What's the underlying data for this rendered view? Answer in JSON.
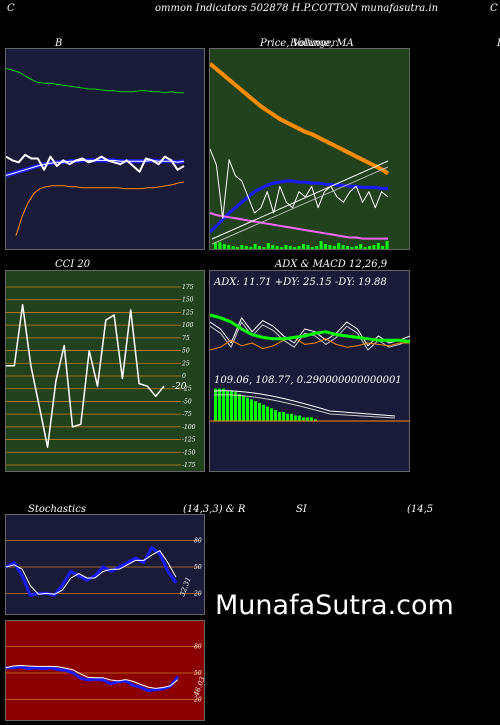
{
  "header": {
    "c_left": "C",
    "title": "ommon  Indicators 502878 H.P.COTTON  munafasutra.in",
    "c_right": "C"
  },
  "panels": {
    "b": {
      "label": "B"
    },
    "price": {
      "label": "Price,  Volume,  MA",
      "label_overlap": "Bollinger"
    },
    "cci": {
      "label": "CCI 20",
      "value_label": "-20",
      "ticks": [
        "175",
        "150",
        "125",
        "100",
        "75",
        "50",
        "25",
        "0",
        "-25",
        "-50",
        "-75",
        "-100",
        "-125",
        "-150",
        "-175"
      ]
    },
    "adx": {
      "label": "ADX  & MACD 12,26,9",
      "adx_text": "ADX: 11.71  +DY: 25.15 -DY: 19.88",
      "macd_text": "109.06,  108.77,  0.290000000000001"
    },
    "stoch": {
      "label_left": "Stochastics",
      "label_mid": "(14,3,3) & R",
      "label_si": "SI",
      "label_right": "(14,5",
      "ticks": [
        "80",
        "50",
        "20"
      ],
      "value_label": "32.31"
    },
    "rsi": {
      "ticks": [
        "80",
        "50",
        "20"
      ],
      "value_label": "46.03"
    },
    "right_edge": {
      "label": "I"
    }
  },
  "watermark": "MunafaSutra.com",
  "colors": {
    "bg": "#000000",
    "navy": "#1a1b38",
    "green_panel": "#21421d",
    "red_panel": "#8b0000",
    "white": "#ffffff",
    "blue": "#1a1aff",
    "orange": "#ff8c00",
    "green": "#00d000",
    "magenta": "#ff66ff",
    "grid_orange": "#c87d1e",
    "lime": "#00ff00"
  },
  "chart_data": [
    {
      "type": "line",
      "title": "B",
      "series": [
        {
          "values": [
            128,
            126,
            124,
            120,
            116,
            113,
            112,
            112,
            111,
            110,
            109,
            108,
            107,
            106,
            106,
            105,
            104,
            104,
            103,
            103,
            103,
            104,
            104,
            103,
            103,
            102,
            103,
            102,
            102
          ]
        },
        {
          "values": [
            34,
            30,
            28,
            36,
            32,
            32,
            20,
            34,
            24,
            30,
            26,
            30,
            32,
            28,
            30,
            34,
            30,
            28,
            26,
            30,
            24,
            18,
            32,
            30,
            26,
            34,
            30,
            20,
            24
          ]
        },
        {
          "values": [
            14,
            16,
            18,
            20,
            22,
            24,
            26,
            27,
            28,
            28,
            29,
            29,
            30,
            30,
            30,
            30,
            30,
            30,
            29,
            29,
            29,
            29,
            29,
            30,
            29,
            29,
            29,
            28,
            29
          ]
        },
        {
          "values": [
            -50,
            -30,
            -15,
            -5,
            0,
            2,
            3,
            3,
            3,
            2,
            2,
            1,
            1,
            1,
            1,
            1,
            1,
            1,
            0,
            0,
            0,
            0,
            1,
            1,
            2,
            3,
            4,
            6,
            7
          ]
        }
      ]
    },
    {
      "type": "line",
      "title": "Price, Volume, MA",
      "series": [
        {
          "values": [
            100,
            95,
            90,
            85,
            80,
            75,
            70,
            65,
            60,
            56,
            52,
            48,
            45,
            42,
            39,
            36,
            34,
            31,
            28,
            25,
            22,
            19,
            16,
            13,
            10,
            7,
            4,
            1,
            -3
          ]
        },
        {
          "values": [
            20,
            5,
            -45,
            10,
            -5,
            -10,
            -25,
            -40,
            -35,
            -20,
            -40,
            -15,
            -30,
            -35,
            -20,
            -25,
            -15,
            -35,
            -20,
            -15,
            -25,
            -30,
            -20,
            -15,
            -30,
            -20,
            -35,
            -20,
            -25
          ]
        },
        {
          "values": [
            -58,
            -52,
            -46,
            -40,
            -35,
            -30,
            -25,
            -20,
            -17,
            -14,
            -12,
            -11,
            -10,
            -10,
            -11,
            -11,
            -12,
            -12,
            -13,
            -13,
            -14,
            -14,
            -15,
            -15,
            -16,
            -16,
            -16,
            -17,
            -17
          ]
        },
        {
          "values": [
            -40,
            -42,
            -43,
            -44,
            -45,
            -46,
            -47,
            -48,
            -49,
            -50,
            -51,
            -52,
            -53,
            -54,
            -55,
            -56,
            -57,
            -58,
            -59,
            -60,
            -61,
            -62,
            -63,
            -63,
            -64,
            -64,
            -64,
            -64,
            -64
          ]
        }
      ]
    },
    {
      "type": "line",
      "title": "CCI 20",
      "ylim": [
        -175,
        175
      ],
      "series": [
        {
          "values": [
            20,
            20,
            140,
            20,
            -60,
            -140,
            -10,
            60,
            -100,
            -95,
            50,
            -20,
            110,
            120,
            -5,
            130,
            -15,
            -20,
            -40,
            -20
          ]
        }
      ]
    },
    {
      "type": "line",
      "title": "ADX & MACD 12,26,9",
      "series": [
        {
          "name": "ADX",
          "values": [
            30,
            28,
            25,
            20,
            16,
            14,
            13,
            13,
            14,
            15,
            17,
            18,
            16,
            15,
            14,
            13,
            12,
            12,
            12,
            11
          ]
        },
        {
          "name": "+DY",
          "values": [
            35,
            30,
            20,
            38,
            28,
            36,
            32,
            25,
            20,
            30,
            28,
            22,
            27,
            35,
            30,
            18,
            25,
            20,
            22,
            25
          ]
        },
        {
          "name": "-DY",
          "values": [
            15,
            17,
            22,
            18,
            20,
            16,
            18,
            22,
            24,
            19,
            20,
            23,
            19,
            17,
            18,
            20,
            19,
            18,
            20,
            20
          ]
        }
      ]
    },
    {
      "type": "line",
      "title": "Stochastics (14,3,3)",
      "ylim": [
        0,
        100
      ],
      "series": [
        {
          "values": [
            50,
            55,
            40,
            18,
            20,
            20,
            18,
            30,
            45,
            40,
            35,
            40,
            50,
            45,
            50,
            55,
            60,
            55,
            72,
            65,
            45,
            32
          ]
        }
      ]
    },
    {
      "type": "line",
      "title": "RSI (14,5)",
      "ylim": [
        0,
        100
      ],
      "series": [
        {
          "values": [
            56,
            56,
            57,
            55,
            56,
            55,
            56,
            54,
            53,
            50,
            44,
            42,
            43,
            42,
            38,
            40,
            41,
            36,
            34,
            30,
            31,
            32,
            35,
            46
          ]
        }
      ]
    }
  ]
}
